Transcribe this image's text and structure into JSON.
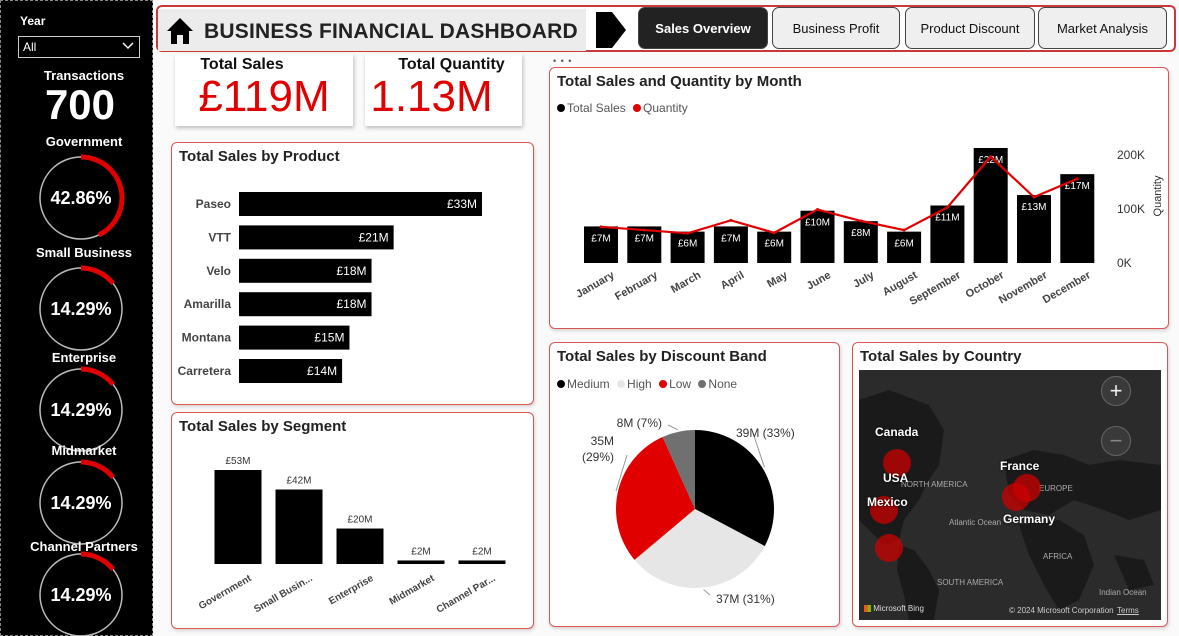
{
  "sidebar": {
    "year_label": "Year",
    "year_value": "All",
    "transactions_label": "Transactions",
    "transactions_value": "700",
    "segments": [
      {
        "label": "Government",
        "pct": "42.86%",
        "fraction": 0.4286
      },
      {
        "label": "Small Business",
        "pct": "14.29%",
        "fraction": 0.1429
      },
      {
        "label": "Enterprise",
        "pct": "14.29%",
        "fraction": 0.1429
      },
      {
        "label": "Midmarket",
        "pct": "14.29%",
        "fraction": 0.1429
      },
      {
        "label": "Channel Partners",
        "pct": "14.29%",
        "fraction": 0.1429
      }
    ]
  },
  "header": {
    "title": "BUSINESS FINANCIAL DASHBOARD",
    "tabs": [
      "Sales Overview",
      "Business Profit",
      "Product Discount",
      "Market Analysis"
    ],
    "active_tab": "Sales Overview"
  },
  "kpis": {
    "total_sales_label": "Total Sales",
    "total_sales_value": "£119M",
    "total_quantity_label": "Total Quantity",
    "total_quantity_value": "1.13M"
  },
  "colors": {
    "accent_red": "#e00000",
    "bar_black": "#000000",
    "border_red": "#c9393b"
  },
  "chart_data": [
    {
      "type": "bar",
      "orientation": "horizontal",
      "title": "Total Sales by Product",
      "categories": [
        "Paseo",
        "VTT",
        "Velo",
        "Amarilla",
        "Montana",
        "Carretera"
      ],
      "values": [
        33,
        21,
        18,
        18,
        15,
        14
      ],
      "labels": [
        "£33M",
        "£21M",
        "£18M",
        "£18M",
        "£15M",
        "£14M"
      ]
    },
    {
      "type": "bar",
      "title": "Total Sales by Segment",
      "categories": [
        "Government",
        "Small Busin...",
        "Enterprise",
        "Midmarket",
        "Channel Par..."
      ],
      "values": [
        53,
        42,
        20,
        2,
        2
      ],
      "labels": [
        "£53M",
        "£42M",
        "£20M",
        "£2M",
        "£2M"
      ]
    },
    {
      "type": "bar",
      "title": "Total Sales and Quantity by Month",
      "categories": [
        "January",
        "February",
        "March",
        "April",
        "May",
        "June",
        "July",
        "August",
        "September",
        "October",
        "November",
        "December"
      ],
      "series": [
        {
          "name": "Total Sales",
          "type": "bar",
          "values": [
            7,
            7,
            6,
            7,
            6,
            10,
            8,
            6,
            11,
            22,
            13,
            17
          ],
          "labels": [
            "£7M",
            "£7M",
            "£6M",
            "£7M",
            "£6M",
            "£10M",
            "£8M",
            "£6M",
            "£11M",
            "£22M",
            "£13M",
            "£17M"
          ]
        },
        {
          "name": "Quantity",
          "type": "line",
          "values": [
            67000,
            61000,
            55000,
            79000,
            56000,
            99000,
            78000,
            61000,
            103000,
            197000,
            122000,
            156000
          ]
        }
      ],
      "y2_label": "Quantity",
      "y2_ticks": [
        "0K",
        "100K",
        "200K"
      ],
      "y2lim": [
        0,
        200000
      ]
    },
    {
      "type": "pie",
      "title": "Total Sales by Discount Band",
      "categories": [
        "Medium",
        "High",
        "Low",
        "None"
      ],
      "values": [
        39,
        37,
        35,
        8
      ],
      "labels": [
        "39M (33%)",
        "37M (31%)",
        "35M (29%)",
        "8M (7%)"
      ],
      "colors": [
        "#000000",
        "#e6e6e6",
        "#e00000",
        "#707070"
      ],
      "legend": "top-left"
    }
  ],
  "map": {
    "title": "Total Sales by Country",
    "countries": [
      "Canada",
      "USA",
      "Mexico",
      "France",
      "Germany"
    ],
    "regions": [
      "NORTH AMERICA",
      "Atlantic Ocean",
      "EUROPE",
      "AFRICA",
      "SOUTH AMERICA",
      "Indian Ocean"
    ],
    "footer_brand": "Microsoft Bing",
    "footer_copy": "© 2024 Microsoft Corporation",
    "footer_terms": "Terms",
    "zoom_in": "+",
    "zoom_out": "−"
  },
  "legend_month": {
    "sales": "Total Sales",
    "quantity": "Quantity"
  },
  "more_options": "• • •"
}
